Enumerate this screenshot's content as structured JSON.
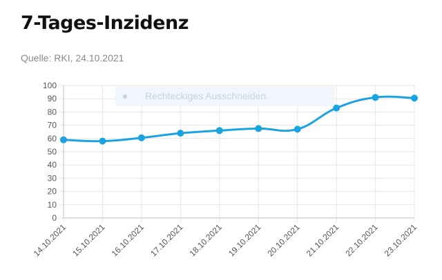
{
  "header": {
    "title": "7-Tages-Inzidenz",
    "source": "Quelle: RKI, 24.10.2021"
  },
  "overlay": {
    "label": "Rechteckiges Ausschneiden"
  },
  "colors": {
    "series": "#1aa3e0",
    "grid": "#e6e6e6",
    "title": "#111111",
    "subtitle": "#8a8a8a"
  },
  "chart_data": {
    "type": "line",
    "title": "7-Tages-Inzidenz",
    "x": [
      "14.10.2021",
      "15.10.2021",
      "16.10.2021",
      "17.10.2021",
      "18.10.2021",
      "19.10.2021",
      "20.10.2021",
      "21.10.2021",
      "22.10.2021",
      "23.10.2021"
    ],
    "series": [
      {
        "values": [
          59,
          58,
          60.5,
          64,
          66,
          67.5,
          67,
          83,
          91,
          90.5
        ]
      }
    ],
    "y_ticks": [
      0,
      10,
      20,
      30,
      40,
      50,
      60,
      70,
      80,
      90,
      100
    ],
    "ylim": [
      0,
      100
    ],
    "xlabel": "",
    "ylabel": "",
    "grid": true,
    "legend": "none",
    "smooth": true
  }
}
